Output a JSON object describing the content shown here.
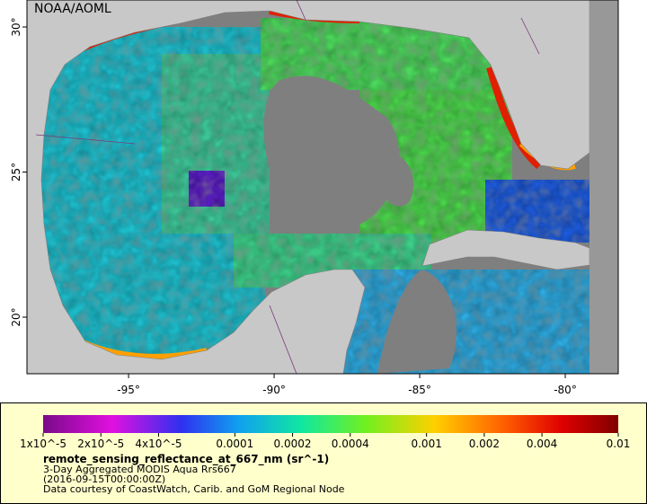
{
  "map": {
    "title": "NOAA/AOML",
    "xlim": [
      -98.49,
      -78.18
    ],
    "ylim": [
      18.05,
      30.93
    ],
    "xticks": [
      {
        "value": -95,
        "label": "-95°"
      },
      {
        "value": -90,
        "label": "-90°"
      },
      {
        "value": -85,
        "label": "-85°"
      },
      {
        "value": -80,
        "label": "-80°"
      }
    ],
    "yticks": [
      {
        "value": 20,
        "label": "20°"
      },
      {
        "value": 25,
        "label": "25°"
      },
      {
        "value": 30,
        "label": "30°"
      }
    ]
  },
  "colorbar": {
    "range": [
      1e-05,
      0.01
    ],
    "log": true,
    "ticks": [
      {
        "value": 1e-05,
        "label": "1x10^-5"
      },
      {
        "value": 2e-05,
        "label": "2x10^-5"
      },
      {
        "value": 4e-05,
        "label": "4x10^-5"
      },
      {
        "value": 0.0001,
        "label": "0.0001"
      },
      {
        "value": 0.0002,
        "label": "0.0002"
      },
      {
        "value": 0.0004,
        "label": "0.0004"
      },
      {
        "value": 0.001,
        "label": "0.001"
      },
      {
        "value": 0.002,
        "label": "0.002"
      },
      {
        "value": 0.004,
        "label": "0.004"
      },
      {
        "value": 0.01,
        "label": "0.01"
      }
    ],
    "variable": "remote_sensing_reflectance_at_667_nm (sr^-1)",
    "lines": [
      "3-Day Aggregated MODIS Aqua Rrs667",
      "(2016-09-15T00:00:00Z)",
      "Data courtesy of CoastWatch, Carib. and GoM Regional Node"
    ]
  }
}
